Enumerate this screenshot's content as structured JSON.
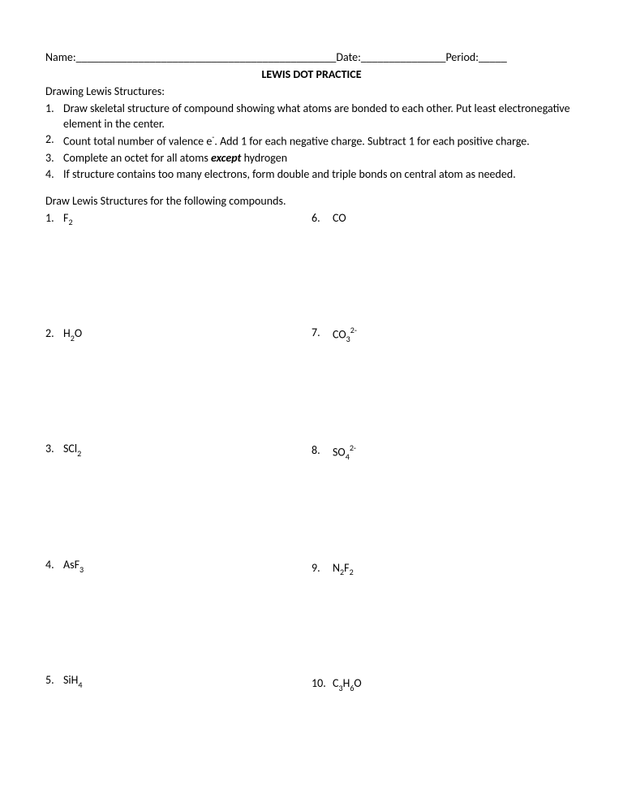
{
  "header": {
    "name_label": "Name:",
    "name_blank": "______________________________________________",
    "date_label": "Date:",
    "date_blank": "_______________",
    "period_label": "Period:",
    "period_blank": "_____"
  },
  "title": "LEWIS DOT PRACTICE",
  "instructions_heading": "Drawing Lewis Structures:",
  "instructions": [
    {
      "n": "1.",
      "text_a": "Draw skeletal structure of compound showing what atoms are bonded to each other.  Put least electronegative element in the center."
    },
    {
      "n": "2.",
      "text_a": "Count total number of valence e",
      "sup": "-",
      "text_b": ".  Add 1 for each negative charge.  Subtract 1 for each positive charge."
    },
    {
      "n": "3.",
      "text_a": "Complete an octet for all atoms ",
      "em": "except",
      "text_b": " hydrogen"
    },
    {
      "n": "4.",
      "text_a": "If structure contains too many electrons, form double and triple bonds on central atom as needed."
    }
  ],
  "prompt": "Draw Lewis Structures for the following compounds.",
  "left": [
    {
      "n": "1.",
      "parts": [
        {
          "t": "F"
        },
        {
          "sub": "2"
        }
      ]
    },
    {
      "n": "2.",
      "parts": [
        {
          "t": "H"
        },
        {
          "sub": "2"
        },
        {
          "t": "O"
        }
      ]
    },
    {
      "n": "3.",
      "parts": [
        {
          "t": "SCl"
        },
        {
          "sub": "2"
        }
      ]
    },
    {
      "n": "4.",
      "parts": [
        {
          "t": "AsF"
        },
        {
          "sub": "3"
        }
      ]
    },
    {
      "n": "5.",
      "parts": [
        {
          "t": "SiH"
        },
        {
          "sub": "4"
        }
      ]
    }
  ],
  "right": [
    {
      "n": "6.",
      "parts": [
        {
          "t": "CO"
        }
      ]
    },
    {
      "n": "7.",
      "parts": [
        {
          "t": "CO"
        },
        {
          "sub": "3"
        },
        {
          "sup": "2-"
        }
      ]
    },
    {
      "n": "8.",
      "parts": [
        {
          "t": "SO"
        },
        {
          "sub": "4"
        },
        {
          "sup": "2-"
        }
      ]
    },
    {
      "n": "9.",
      "parts": [
        {
          "t": "N"
        },
        {
          "sub": "2"
        },
        {
          "t": "F"
        },
        {
          "sub": "2"
        }
      ]
    },
    {
      "n": "10.",
      "parts": [
        {
          "t": "C"
        },
        {
          "sub": "3"
        },
        {
          "t": "H"
        },
        {
          "sub": "6"
        },
        {
          "t": "O"
        }
      ]
    }
  ]
}
